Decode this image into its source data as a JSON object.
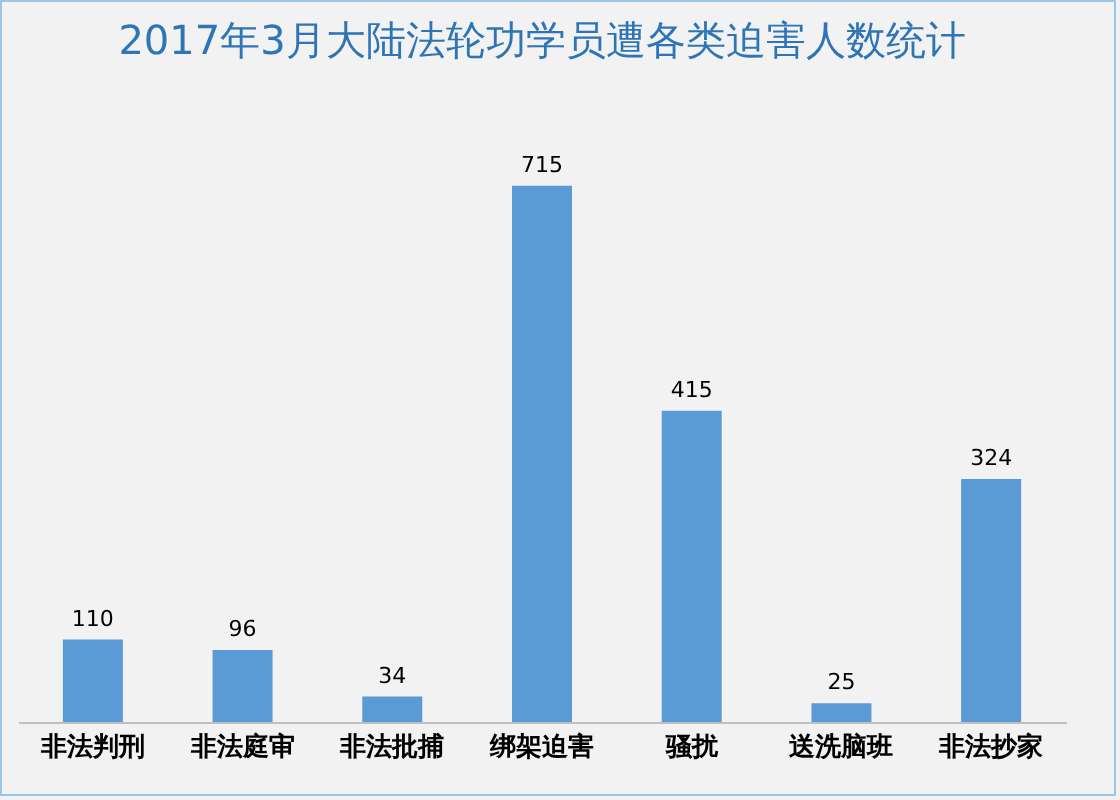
{
  "chart_data": {
    "type": "bar",
    "title": "2017年3月大陆法轮功学员遭各类迫害人数统计",
    "categories": [
      "非法判刑",
      "非法庭审",
      "非法批捕",
      "绑架迫害",
      "骚扰",
      "送洗脑班",
      "非法抄家"
    ],
    "values": [
      110,
      96,
      34,
      715,
      415,
      25,
      324
    ],
    "color": "#5b9bd5",
    "tick_labels": "x",
    "data_labels": true
  }
}
